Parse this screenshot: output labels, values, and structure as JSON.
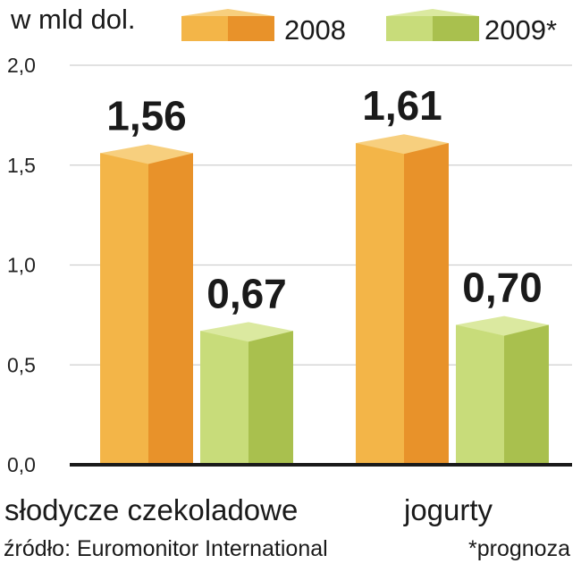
{
  "unit_label": "w mld dol.",
  "source": "źródło: Euromonitor International",
  "footnote": "*prognoza",
  "colors": {
    "2008": {
      "front": "#f3b548",
      "side": "#e8922a",
      "top": "#f7cf7e"
    },
    "2009*": {
      "front": "#c8dc7a",
      "side": "#a9c04e",
      "top": "#dbe9a0"
    },
    "axis": "#1a1a1a",
    "grid": "#cfcfcf"
  },
  "chart_data": {
    "type": "bar",
    "categories": [
      "słodycze czekoladowe",
      "jogurty"
    ],
    "series": [
      {
        "name": "2008",
        "values": [
          1.56,
          1.61
        ],
        "labels": [
          "1,56",
          "1,61"
        ]
      },
      {
        "name": "2009*",
        "values": [
          0.67,
          0.7
        ],
        "labels": [
          "0,67",
          "0,70"
        ]
      }
    ],
    "ylim": [
      0,
      2.0
    ],
    "yticks": [
      0,
      0.5,
      1.0,
      1.5,
      2.0
    ],
    "ytick_labels": [
      "0,0",
      "0,5",
      "1,0",
      "1,5",
      "2,0"
    ],
    "grid": true,
    "legend_position": "top"
  }
}
